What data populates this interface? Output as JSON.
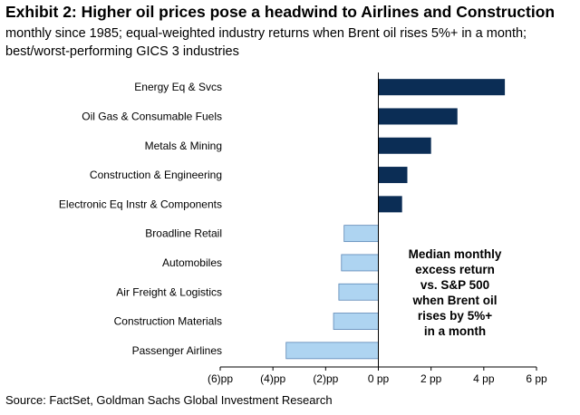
{
  "header": {
    "title": "Exhibit 2: Higher oil prices pose a headwind to Airlines and Construction",
    "subtitle": "monthly since 1985; equal-weighted industry returns when Brent oil rises 5%+ in a month; best/worst-performing GICS 3 industries"
  },
  "footer": {
    "source": "Source: FactSet, Goldman Sachs Global Investment Research"
  },
  "chart_data": {
    "type": "bar",
    "orientation": "horizontal",
    "categories": [
      "Energy Eq & Svcs",
      "Oil Gas & Consumable Fuels",
      "Metals & Mining",
      "Construction & Engineering",
      "Electronic Eq Instr & Components",
      "Broadline Retail",
      "Automobiles",
      "Air Freight & Logistics",
      "Construction Materials",
      "Passenger Airlines"
    ],
    "values": [
      4.8,
      3.0,
      2.0,
      1.1,
      0.9,
      -1.3,
      -1.4,
      -1.5,
      -1.7,
      -3.5
    ],
    "xlim": [
      -6,
      6
    ],
    "xticks": [
      -6,
      -4,
      -2,
      0,
      2,
      4,
      6
    ],
    "xtick_labels": [
      "(6)pp",
      "(4)pp",
      "(2)pp",
      "0 pp",
      "2 pp",
      "4 pp",
      "6 pp"
    ],
    "grid": false,
    "colors": {
      "positive": "#0b2d55",
      "negative": "#aed4f1",
      "negative_border": "#5b86b5",
      "axis": "#000000"
    },
    "annotation": [
      "Median monthly",
      "excess return",
      "vs. S&P 500",
      "when Brent oil",
      "rises by 5%+",
      "in a month"
    ]
  }
}
